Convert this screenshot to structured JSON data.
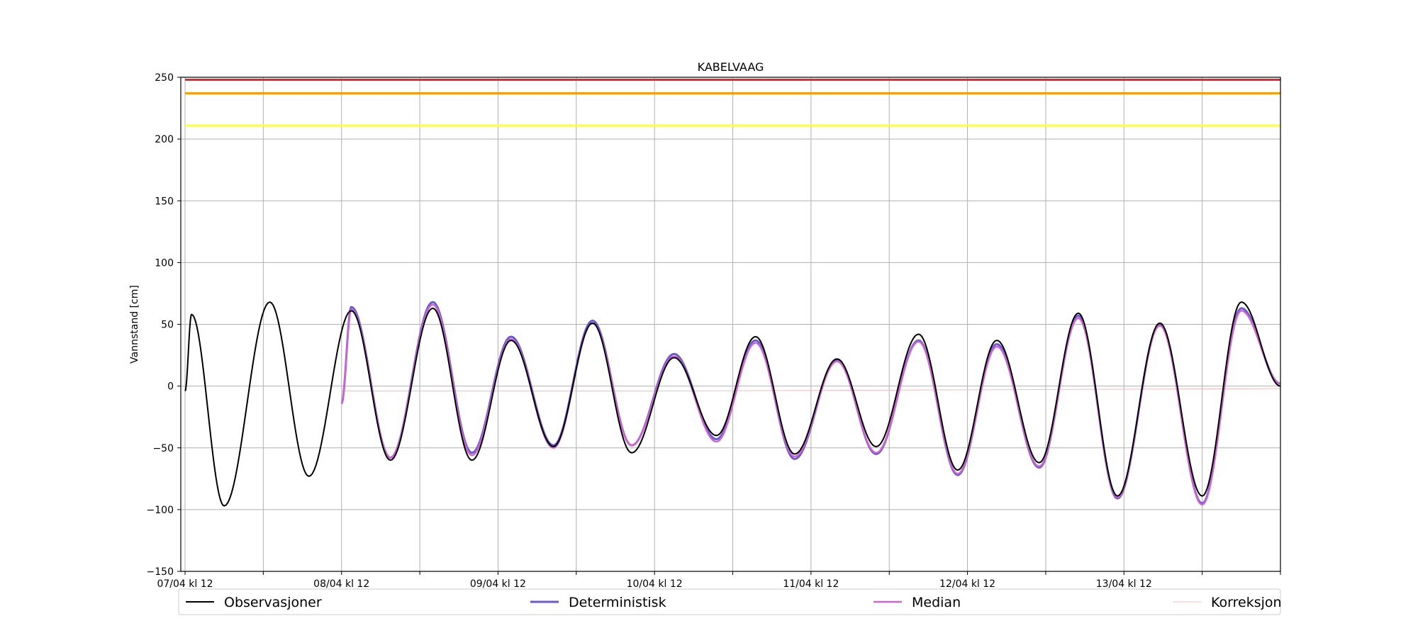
{
  "chart_data": {
    "type": "line",
    "title": "KABELVAAG",
    "ylabel": "Vannstand [cm]",
    "xlabel": "",
    "ylim": [
      -150,
      250
    ],
    "yticks": [
      -150,
      -100,
      -50,
      0,
      50,
      100,
      150,
      200,
      250
    ],
    "xlim": [
      "2020-04-07 12:00",
      "2020-04-14 12:00"
    ],
    "xtick_labels": [
      "07/04 kl 12",
      "08/04 kl 12",
      "09/04 kl 12",
      "10/04 kl 12",
      "11/04 kl 12",
      "12/04 kl 12",
      "13/04 kl 12",
      ""
    ],
    "grid": true,
    "legend_position": "bottom",
    "thresholds": [
      {
        "value": 248,
        "color": "#e8282e"
      },
      {
        "value": 237,
        "color": "#ff9900"
      },
      {
        "value": 211,
        "color": "#ffff33"
      }
    ],
    "series": [
      {
        "name": "Observasjoner",
        "color": "#000000",
        "start": "2020-04-07 12:00",
        "extrema": [
          [
            "2020-04-07 12:00",
            -4
          ],
          [
            "2020-04-07 13:00",
            58
          ],
          [
            "2020-04-07 18:00",
            -97
          ],
          [
            "2020-04-08 01:00",
            68
          ],
          [
            "2020-04-08 07:00",
            -73
          ],
          [
            "2020-04-08 13:30",
            61
          ],
          [
            "2020-04-08 19:30",
            -60
          ],
          [
            "2020-04-09 02:00",
            63
          ],
          [
            "2020-04-09 08:00",
            -60
          ],
          [
            "2020-04-09 14:00",
            37
          ],
          [
            "2020-04-09 20:30",
            -49
          ],
          [
            "2020-04-10 02:30",
            51
          ],
          [
            "2020-04-10 08:30",
            -54
          ],
          [
            "2020-04-10 15:00",
            23
          ],
          [
            "2020-04-10 21:30",
            -40
          ],
          [
            "2020-04-11 03:30",
            40
          ],
          [
            "2020-04-11 09:30",
            -55
          ],
          [
            "2020-04-11 16:00",
            22
          ],
          [
            "2020-04-11 22:00",
            -49
          ],
          [
            "2020-04-12 04:30",
            42
          ],
          [
            "2020-04-12 10:30",
            -68
          ],
          [
            "2020-04-12 16:30",
            37
          ],
          [
            "2020-04-12 23:00",
            -62
          ],
          [
            "2020-04-13 05:00",
            59
          ],
          [
            "2020-04-13 11:00",
            -89
          ],
          [
            "2020-04-13 17:30",
            51
          ],
          [
            "2020-04-14 00:00",
            -89
          ],
          [
            "2020-04-14 06:00",
            68
          ],
          [
            "2020-04-14 12:00",
            0
          ]
        ]
      },
      {
        "name": "Deterministisk",
        "color": "#6a5acd",
        "start": "2020-04-08 12:00",
        "extrema": [
          [
            "2020-04-08 12:00",
            -14
          ],
          [
            "2020-04-08 13:30",
            64
          ],
          [
            "2020-04-08 19:30",
            -58
          ],
          [
            "2020-04-09 02:00",
            68
          ],
          [
            "2020-04-09 08:00",
            -54
          ],
          [
            "2020-04-09 14:00",
            40
          ],
          [
            "2020-04-09 20:30",
            -48
          ],
          [
            "2020-04-10 02:30",
            53
          ],
          [
            "2020-04-10 08:30",
            -48
          ],
          [
            "2020-04-10 15:00",
            26
          ],
          [
            "2020-04-10 21:30",
            -43
          ],
          [
            "2020-04-11 03:30",
            37
          ],
          [
            "2020-04-11 09:30",
            -59
          ],
          [
            "2020-04-11 16:00",
            21
          ],
          [
            "2020-04-11 22:00",
            -55
          ],
          [
            "2020-04-12 04:30",
            37
          ],
          [
            "2020-04-12 10:30",
            -72
          ],
          [
            "2020-04-12 16:30",
            34
          ],
          [
            "2020-04-12 23:00",
            -66
          ],
          [
            "2020-04-13 05:00",
            57
          ],
          [
            "2020-04-13 11:00",
            -91
          ],
          [
            "2020-04-13 17:30",
            50
          ],
          [
            "2020-04-14 00:00",
            -95
          ],
          [
            "2020-04-14 06:00",
            63
          ],
          [
            "2020-04-14 12:00",
            2
          ]
        ]
      },
      {
        "name": "Median",
        "color": "#cc66cc",
        "start": "2020-04-08 12:00",
        "extrema": [
          [
            "2020-04-08 12:00",
            -14
          ],
          [
            "2020-04-08 13:30",
            62
          ],
          [
            "2020-04-08 19:30",
            -58
          ],
          [
            "2020-04-09 02:00",
            66
          ],
          [
            "2020-04-09 08:00",
            -56
          ],
          [
            "2020-04-09 14:00",
            38
          ],
          [
            "2020-04-09 20:30",
            -50
          ],
          [
            "2020-04-10 02:30",
            51
          ],
          [
            "2020-04-10 08:30",
            -48
          ],
          [
            "2020-04-10 15:00",
            24
          ],
          [
            "2020-04-10 21:30",
            -45
          ],
          [
            "2020-04-11 03:30",
            35
          ],
          [
            "2020-04-11 09:30",
            -57
          ],
          [
            "2020-04-11 16:00",
            20
          ],
          [
            "2020-04-11 22:00",
            -54
          ],
          [
            "2020-04-12 04:30",
            36
          ],
          [
            "2020-04-12 10:30",
            -71
          ],
          [
            "2020-04-12 16:30",
            32
          ],
          [
            "2020-04-12 23:00",
            -65
          ],
          [
            "2020-04-13 05:00",
            55
          ],
          [
            "2020-04-13 11:00",
            -90
          ],
          [
            "2020-04-13 17:30",
            49
          ],
          [
            "2020-04-14 00:00",
            -96
          ],
          [
            "2020-04-14 06:00",
            61
          ],
          [
            "2020-04-14 12:00",
            2
          ]
        ]
      },
      {
        "name": "Korreksjon",
        "color": "#f2bcbc",
        "start": "2020-04-08 12:00",
        "points": [
          [
            "2020-04-08 12:00",
            -4
          ],
          [
            "2020-04-10 12:00",
            -4
          ],
          [
            "2020-04-12 12:00",
            -3
          ],
          [
            "2020-04-14 12:00",
            -2
          ]
        ]
      }
    ]
  }
}
